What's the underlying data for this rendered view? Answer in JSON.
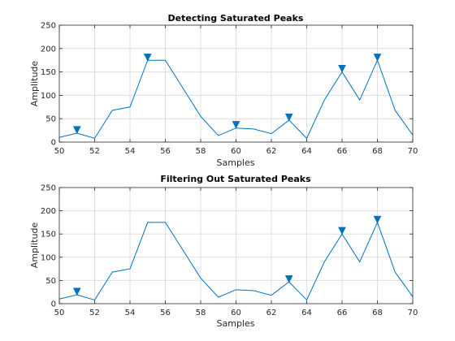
{
  "chart_data": [
    {
      "type": "line",
      "title": "Detecting Saturated Peaks",
      "xlabel": "Samples",
      "ylabel": "Amplitude",
      "xlim": [
        50,
        70
      ],
      "ylim": [
        0,
        250
      ],
      "xticks": [
        50,
        52,
        54,
        56,
        58,
        60,
        62,
        64,
        66,
        68,
        70
      ],
      "yticks": [
        0,
        50,
        100,
        150,
        200,
        250
      ],
      "grid": true,
      "line_color": "#0072BD",
      "x": [
        50,
        51,
        52,
        53,
        54,
        55,
        56,
        57,
        58,
        59,
        60,
        61,
        62,
        63,
        64,
        65,
        66,
        67,
        68,
        69,
        70
      ],
      "y": [
        10,
        19,
        8,
        68,
        75,
        175,
        175,
        115,
        55,
        14,
        30,
        28,
        18,
        47,
        8,
        90,
        150,
        90,
        175,
        68,
        15
      ],
      "markers": {
        "shape": "down-triangle",
        "x": [
          51,
          55,
          60,
          63,
          66,
          68
        ],
        "y": [
          26,
          181,
          37,
          53,
          157,
          181
        ]
      }
    },
    {
      "type": "line",
      "title": "Filtering Out Saturated Peaks",
      "xlabel": "Samples",
      "ylabel": "Amplitude",
      "xlim": [
        50,
        70
      ],
      "ylim": [
        0,
        250
      ],
      "xticks": [
        50,
        52,
        54,
        56,
        58,
        60,
        62,
        64,
        66,
        68,
        70
      ],
      "yticks": [
        0,
        50,
        100,
        150,
        200,
        250
      ],
      "grid": true,
      "line_color": "#0072BD",
      "x": [
        50,
        51,
        52,
        53,
        54,
        55,
        56,
        57,
        58,
        59,
        60,
        61,
        62,
        63,
        64,
        65,
        66,
        67,
        68,
        69,
        70
      ],
      "y": [
        10,
        19,
        8,
        68,
        75,
        175,
        175,
        115,
        55,
        14,
        30,
        28,
        18,
        47,
        8,
        90,
        150,
        90,
        175,
        68,
        15
      ],
      "markers": {
        "shape": "down-triangle",
        "x": [
          51,
          63,
          66,
          68
        ],
        "y": [
          26,
          53,
          157,
          181
        ]
      }
    }
  ]
}
